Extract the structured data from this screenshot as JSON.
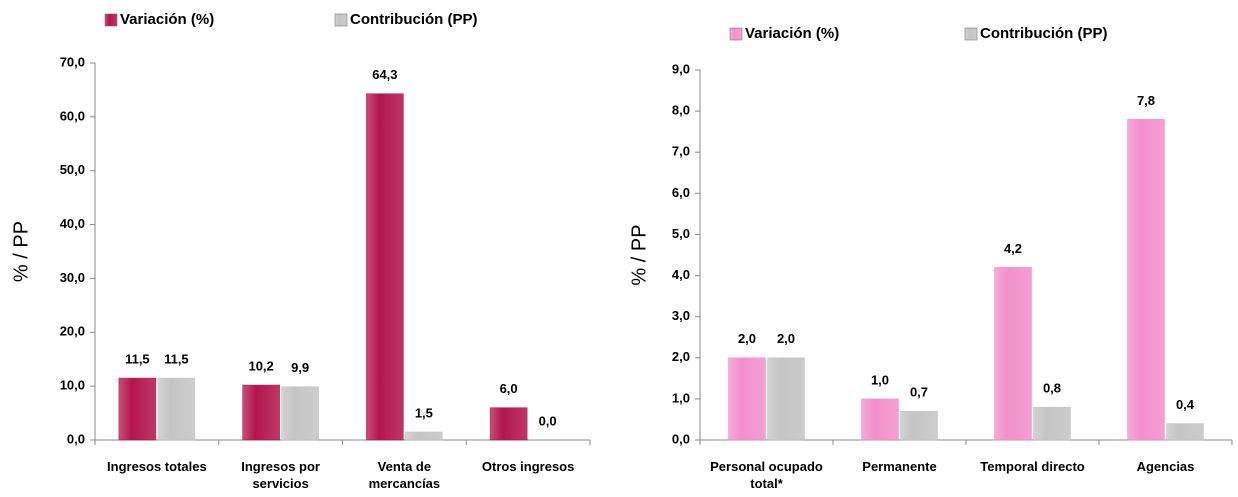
{
  "chart_data": [
    {
      "type": "bar",
      "ylabel": "% / PP",
      "categories": [
        "Ingresos totales",
        "Ingresos por servicios",
        "Venta de mercancías",
        "Otros ingresos"
      ],
      "series": [
        {
          "name": "Variación (%)",
          "color": "#b3154c",
          "values": [
            11.5,
            10.2,
            64.3,
            6.0
          ],
          "value_labels": [
            "11,5",
            "10,2",
            "64,3",
            "6,0"
          ]
        },
        {
          "name": "Contribución (PP)",
          "color": "#c4c4c4",
          "values": [
            11.5,
            9.9,
            1.5,
            0.0
          ],
          "value_labels": [
            "11,5",
            "9,9",
            "1,5",
            "0,0"
          ]
        }
      ],
      "ylim": [
        0,
        70
      ],
      "yticks": [
        {
          "value": 0,
          "label": "0,0"
        },
        {
          "value": 10,
          "label": "10,0"
        },
        {
          "value": 20,
          "label": "20,0"
        },
        {
          "value": 30,
          "label": "30,0"
        },
        {
          "value": 40,
          "label": "40,0"
        },
        {
          "value": 50,
          "label": "50,0"
        },
        {
          "value": 60,
          "label": "60,0"
        },
        {
          "value": 70,
          "label": "70,0"
        }
      ],
      "legend": "top"
    },
    {
      "type": "bar",
      "ylabel": "% / PP",
      "categories": [
        "Personal ocupado total*",
        "Permanente",
        "Temporal directo",
        "Agencias"
      ],
      "series": [
        {
          "name": "Variación (%)",
          "color": "#f28fcb",
          "values": [
            2.0,
            1.0,
            4.2,
            7.8
          ],
          "value_labels": [
            "2,0",
            "1,0",
            "4,2",
            "7,8"
          ]
        },
        {
          "name": "Contribución (PP)",
          "color": "#c4c4c4",
          "values": [
            2.0,
            0.7,
            0.8,
            0.4
          ],
          "value_labels": [
            "2,0",
            "0,7",
            "0,8",
            "0,4"
          ]
        }
      ],
      "ylim": [
        0,
        9
      ],
      "yticks": [
        {
          "value": 0,
          "label": "0,0"
        },
        {
          "value": 1,
          "label": "1,0"
        },
        {
          "value": 2,
          "label": "2,0"
        },
        {
          "value": 3,
          "label": "3,0"
        },
        {
          "value": 4,
          "label": "4,0"
        },
        {
          "value": 5,
          "label": "5,0"
        },
        {
          "value": 6,
          "label": "6,0"
        },
        {
          "value": 7,
          "label": "7,0"
        },
        {
          "value": 8,
          "label": "8,0"
        },
        {
          "value": 9,
          "label": "9,0"
        }
      ],
      "legend": "top"
    }
  ]
}
